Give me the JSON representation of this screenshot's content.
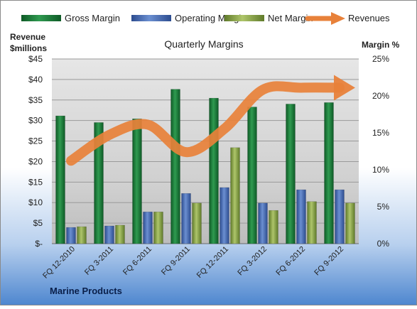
{
  "chart_data": {
    "type": "bar",
    "title": "Quarterly Margins",
    "footer": "Marine Products",
    "ylabel_left_line1": "Revenue",
    "ylabel_left_line2": "$millions",
    "ylabel_right": "Margin %",
    "categories": [
      "FQ 12-2010",
      "FQ 3-2011",
      "FQ 6-2011",
      "FQ 9-2011",
      "FQ 12-2011",
      "FQ 3-2012",
      "FQ 6-2012",
      "FQ 9-2012"
    ],
    "y_left": {
      "min": 0,
      "max": 45,
      "ticks": [
        0,
        5,
        10,
        15,
        20,
        25,
        30,
        35,
        40,
        45
      ],
      "tick_labels": [
        "$-",
        "$5",
        "$10",
        "$15",
        "$20",
        "$25",
        "$30",
        "$35",
        "$40",
        "$45"
      ]
    },
    "y_right": {
      "min": 0,
      "max": 25,
      "ticks": [
        0,
        5,
        10,
        15,
        20,
        25
      ],
      "tick_labels": [
        "0%",
        "5%",
        "10%",
        "15%",
        "20%",
        "25%"
      ]
    },
    "series": [
      {
        "name": "Gross Margin",
        "kind": "bar",
        "axis": "right",
        "color": "#1f7a3a",
        "values": [
          17.3,
          16.4,
          16.9,
          20.9,
          19.7,
          18.5,
          18.9,
          19.1
        ]
      },
      {
        "name": "Operating Margin",
        "kind": "bar",
        "axis": "right",
        "color": "#4c6fb8",
        "values": [
          2.2,
          2.4,
          4.3,
          6.8,
          7.6,
          5.5,
          7.3,
          7.3
        ]
      },
      {
        "name": "Net Margin",
        "kind": "bar",
        "axis": "right",
        "color": "#8aa64a",
        "values": [
          2.3,
          2.5,
          4.3,
          5.5,
          13.0,
          4.5,
          5.7,
          5.5
        ]
      },
      {
        "name": "Revenues",
        "kind": "line",
        "axis": "left",
        "color": "#e8813a",
        "values": [
          20.2,
          26.5,
          29.0,
          22.3,
          28.0,
          37.5,
          38.0,
          38.0
        ]
      }
    ],
    "grid": true,
    "legend_position": "top"
  }
}
